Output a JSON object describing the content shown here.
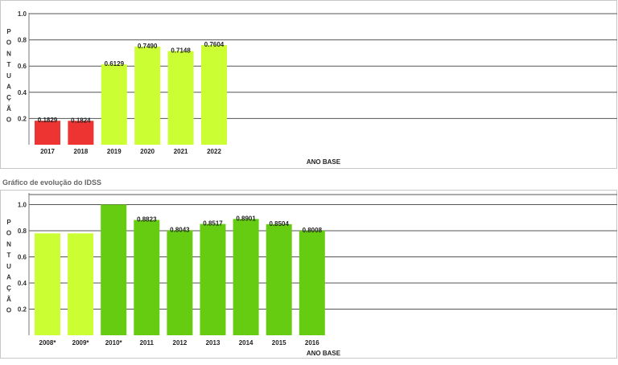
{
  "colors": {
    "red": "#ee3333",
    "yellow_green": "#ccff33",
    "green": "#66cc11",
    "grid": "#555555",
    "frame": "#c8c8c8"
  },
  "section_title": "Gráfico de evolução do IDSS",
  "chart_data": [
    {
      "type": "bar",
      "xlabel": "ANO BASE",
      "ylabel": "PONTUAÇÃO",
      "ylim": [
        0,
        1.0
      ],
      "yticks": [
        "0.2",
        "0.4",
        "0.6",
        "0.8",
        "1.0"
      ],
      "grid": true,
      "categories": [
        "2017",
        "2018",
        "2019",
        "2020",
        "2021",
        "2022"
      ],
      "values": [
        0.1829,
        0.1824,
        0.6129,
        0.749,
        0.7148,
        0.7604
      ],
      "value_labels": [
        "0.1829",
        "0.1824",
        "0.6129",
        "0.7490",
        "0.7148",
        "0.7604"
      ],
      "bar_colors": [
        "red",
        "red",
        "yellow_green",
        "yellow_green",
        "yellow_green",
        "yellow_green"
      ]
    },
    {
      "type": "bar",
      "xlabel": "ANO BASE",
      "ylabel": "PONTUAÇÃO",
      "ylim": [
        0,
        1.0
      ],
      "yticks": [
        "0.2",
        "0.4",
        "0.6",
        "0.8",
        "1.0"
      ],
      "grid": true,
      "categories": [
        "2008*",
        "2009*",
        "2010*",
        "2011",
        "2012",
        "2013",
        "2014",
        "2015",
        "2016"
      ],
      "values": [
        0.78,
        0.78,
        1.0,
        0.8823,
        0.8043,
        0.8517,
        0.8901,
        0.8504,
        0.8008
      ],
      "value_labels": [
        "",
        "",
        "",
        "0.8823",
        "0.8043",
        "0.8517",
        "0.8901",
        "0.8504",
        "0.8008"
      ],
      "bar_colors": [
        "yellow_green",
        "yellow_green",
        "green",
        "green",
        "green",
        "green",
        "green",
        "green",
        "green"
      ]
    }
  ]
}
